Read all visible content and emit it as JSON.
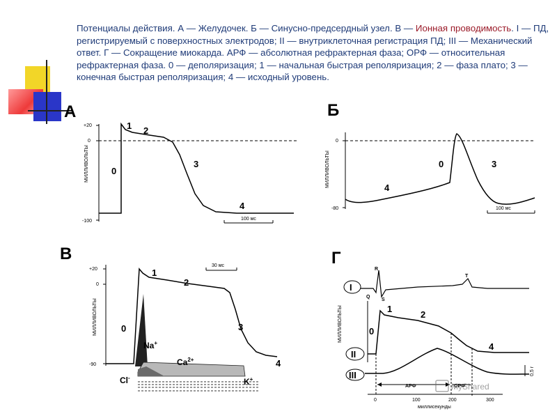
{
  "caption": {
    "part1": "Потенциалы действия. А — Желудочек. Б — Синусно-предсердный узел. В — ",
    "highlight": "Ионная проводимость",
    "part2": ". I — ПД, регистрируемый с поверхностных электродов; II — внутриклеточная регистрация ПД; III — Механический ответ. Г — Сокращение миокарда. АРФ — абсолютная рефрактерная фаза; ОРФ — относительная рефрактерная фаза. 0 — деполяризация; 1 — начальная быстрая реполяризация; 2 — фаза плато; 3 — конечная быстрая реполяризация; 4 — исходный уровень."
  },
  "colors": {
    "caption_text": "#1f3b78",
    "highlight": "#9b1c2a",
    "deco_yellow": "#f2d628",
    "deco_red": "#ee3a3a",
    "deco_blue": "#2a36c8"
  },
  "panel_a": {
    "letter": "А",
    "y_ticks": [
      "+20",
      "0",
      "-100"
    ],
    "y_label": "МИЛЛИВОЛЬТЫ",
    "phases": [
      "0",
      "1",
      "2",
      "3",
      "4"
    ],
    "scale": "100 мс"
  },
  "panel_b": {
    "letter": "Б",
    "y_ticks": [
      "0",
      "-80"
    ],
    "y_label": "МИЛЛИВОЛЬТЫ",
    "phases": [
      "4",
      "0",
      "3"
    ],
    "scale": "100 мс"
  },
  "panel_v": {
    "letter": "В",
    "y_ticks": [
      "+20",
      "0",
      "-90"
    ],
    "y_label": "МИЛЛИВОЛЬТЫ",
    "phases": [
      "1",
      "2",
      "0",
      "3",
      "4"
    ],
    "scale": "30 мс",
    "ions": {
      "na": "Na",
      "na_sup": "+",
      "ca": "Ca",
      "ca_sup": "2+",
      "cl": "Cl",
      "cl_sup": "-",
      "k": "K",
      "k_sup": "+"
    }
  },
  "panel_g": {
    "letter": "Г",
    "rows": [
      "I",
      "II",
      "III"
    ],
    "waves": [
      "R",
      "Q",
      "S",
      "T"
    ],
    "y_label": "МИЛЛИВОЛЬТЫ",
    "phases": [
      "1",
      "2",
      "0",
      "4"
    ],
    "scale_right": "0,5 г",
    "arf": "АРФ",
    "orf": "ОРФ",
    "x_ticks": [
      "0",
      "100",
      "200",
      "300"
    ],
    "x_label": "миллисекунды"
  },
  "watermark": "MyShared"
}
